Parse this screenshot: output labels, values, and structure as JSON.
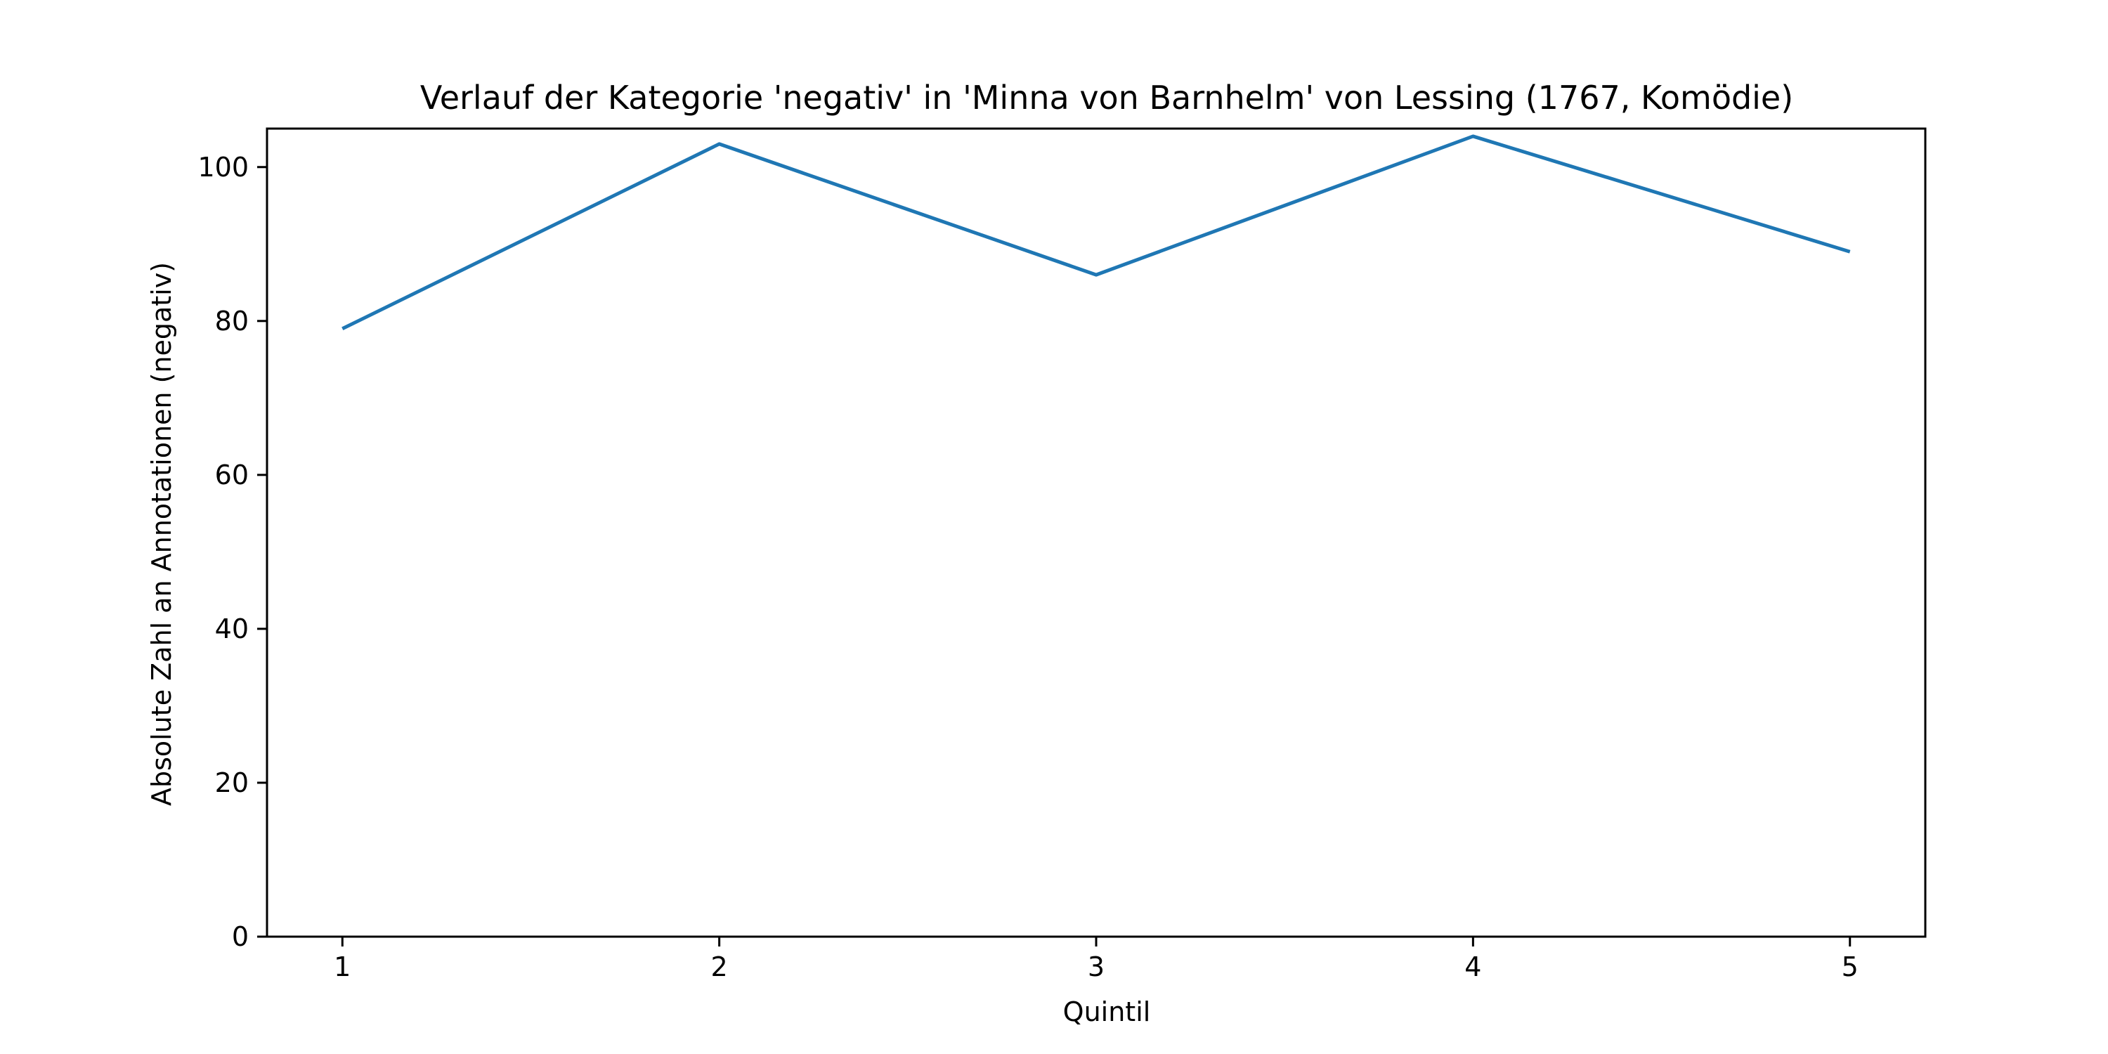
{
  "chart_data": {
    "type": "line",
    "title": "Verlauf der Kategorie 'negativ' in 'Minna von Barnhelm' von Lessing (1767, Komödie)",
    "xlabel": "Quintil",
    "ylabel": "Absolute Zahl an Annotationen (negativ)",
    "x": [
      1,
      2,
      3,
      4,
      5
    ],
    "x_tick_labels": [
      "1",
      "2",
      "3",
      "4",
      "5"
    ],
    "y_ticks": [
      0,
      20,
      40,
      60,
      80,
      100
    ],
    "y_tick_labels": [
      "0",
      "20",
      "40",
      "60",
      "80",
      "100"
    ],
    "xlim": [
      0.8,
      5.2
    ],
    "ylim": [
      0,
      105
    ],
    "series": [
      {
        "values": [
          79,
          103,
          86,
          104,
          89
        ],
        "color": "#1f77b4"
      }
    ],
    "grid": false,
    "legend": "none"
  }
}
